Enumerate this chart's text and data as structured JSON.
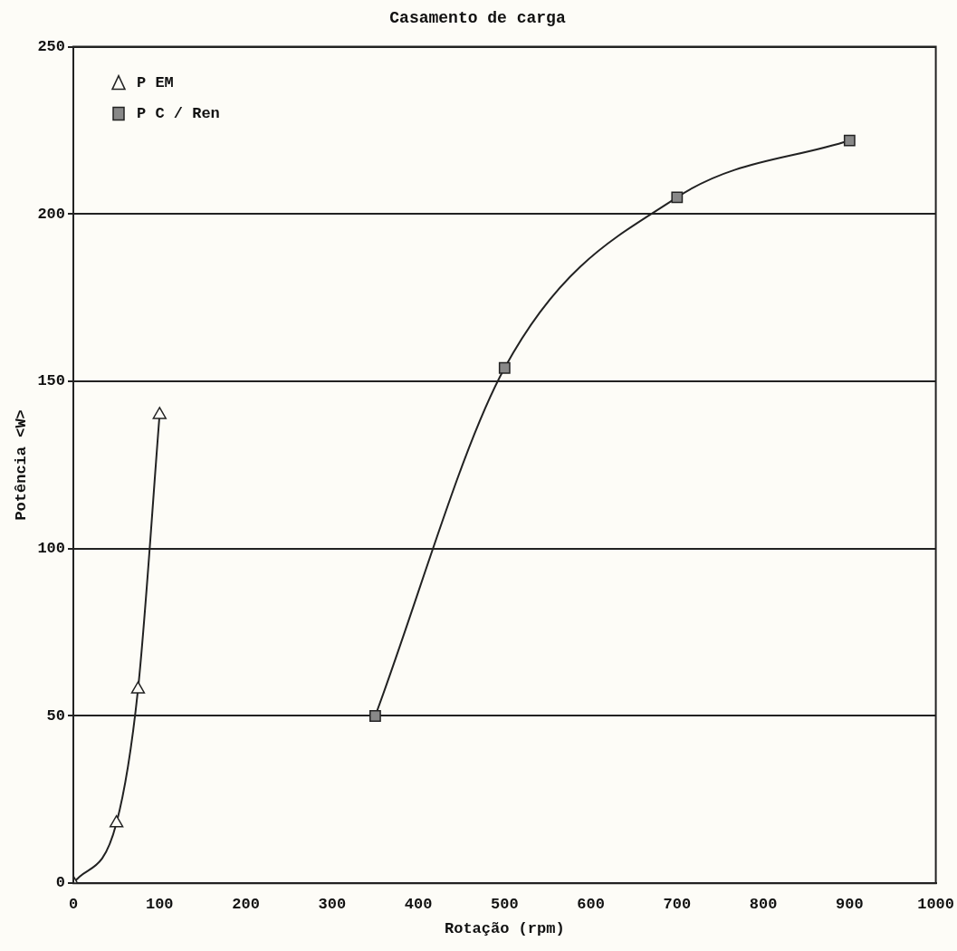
{
  "chart_data": {
    "type": "line",
    "title": "Casamento de carga",
    "xlabel": "Rotação (rpm)",
    "ylabel": "Potência <W>",
    "xlim": [
      0,
      1000
    ],
    "xticks": [
      0,
      100,
      200,
      300,
      400,
      500,
      600,
      700,
      800,
      900,
      1000
    ],
    "ylim": [
      0,
      250
    ],
    "yticks": [
      0,
      50,
      100,
      150,
      200,
      250
    ],
    "grid": "y",
    "legend": "top left",
    "series": [
      {
        "name": "P EM",
        "color": "#222222",
        "marker": "triangle",
        "x": [
          0,
          50,
          75,
          100
        ],
        "values": [
          0,
          18,
          58,
          140
        ]
      },
      {
        "name": "P C / Ren",
        "color": "#222222",
        "marker": "square",
        "x": [
          350,
          500,
          700,
          900
        ],
        "values": [
          50,
          154,
          205,
          222
        ]
      }
    ]
  }
}
